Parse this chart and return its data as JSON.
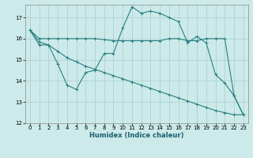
{
  "xlabel": "Humidex (Indice chaleur)",
  "bg_color": "#cceaea",
  "grid_color": "#aacccc",
  "line_color": "#2a7f7f",
  "xlim": [
    -0.5,
    23.5
  ],
  "ylim": [
    12,
    17.6
  ],
  "yticks": [
    12,
    13,
    14,
    15,
    16,
    17
  ],
  "xticks": [
    0,
    1,
    2,
    3,
    4,
    5,
    6,
    7,
    8,
    9,
    10,
    11,
    12,
    13,
    14,
    15,
    16,
    17,
    18,
    19,
    20,
    21,
    22,
    23
  ],
  "series1_x": [
    0,
    1,
    2,
    3,
    4,
    5,
    6,
    7,
    8,
    9,
    10,
    11,
    12,
    13,
    14,
    15,
    16,
    17,
    18,
    19,
    20,
    21,
    22,
    23
  ],
  "series1_y": [
    16.4,
    16.0,
    16.0,
    16.0,
    16.0,
    16.0,
    16.0,
    16.0,
    15.95,
    15.9,
    15.9,
    15.9,
    15.9,
    15.9,
    15.9,
    16.0,
    16.0,
    15.9,
    15.9,
    16.0,
    16.0,
    16.0,
    13.3,
    12.4
  ],
  "series2_x": [
    0,
    1,
    2,
    3,
    4,
    5,
    6,
    7,
    8,
    9,
    10,
    11,
    12,
    13,
    14,
    15,
    16,
    17,
    18,
    19,
    20,
    21,
    22,
    23
  ],
  "series2_y": [
    16.4,
    15.7,
    15.7,
    14.8,
    13.8,
    13.6,
    14.4,
    14.5,
    15.3,
    15.3,
    16.5,
    17.5,
    17.2,
    17.3,
    17.2,
    17.0,
    16.8,
    15.8,
    16.1,
    15.8,
    14.3,
    13.9,
    13.3,
    12.4
  ],
  "series3_x": [
    0,
    1,
    2,
    3,
    4,
    5,
    6,
    7,
    8,
    9,
    10,
    11,
    12,
    13,
    14,
    15,
    16,
    17,
    18,
    19,
    20,
    21,
    22,
    23
  ],
  "series3_y": [
    16.4,
    15.85,
    15.7,
    15.4,
    15.1,
    14.9,
    14.7,
    14.55,
    14.4,
    14.25,
    14.1,
    13.95,
    13.8,
    13.65,
    13.5,
    13.35,
    13.2,
    13.05,
    12.9,
    12.75,
    12.6,
    12.5,
    12.4,
    12.4
  ]
}
